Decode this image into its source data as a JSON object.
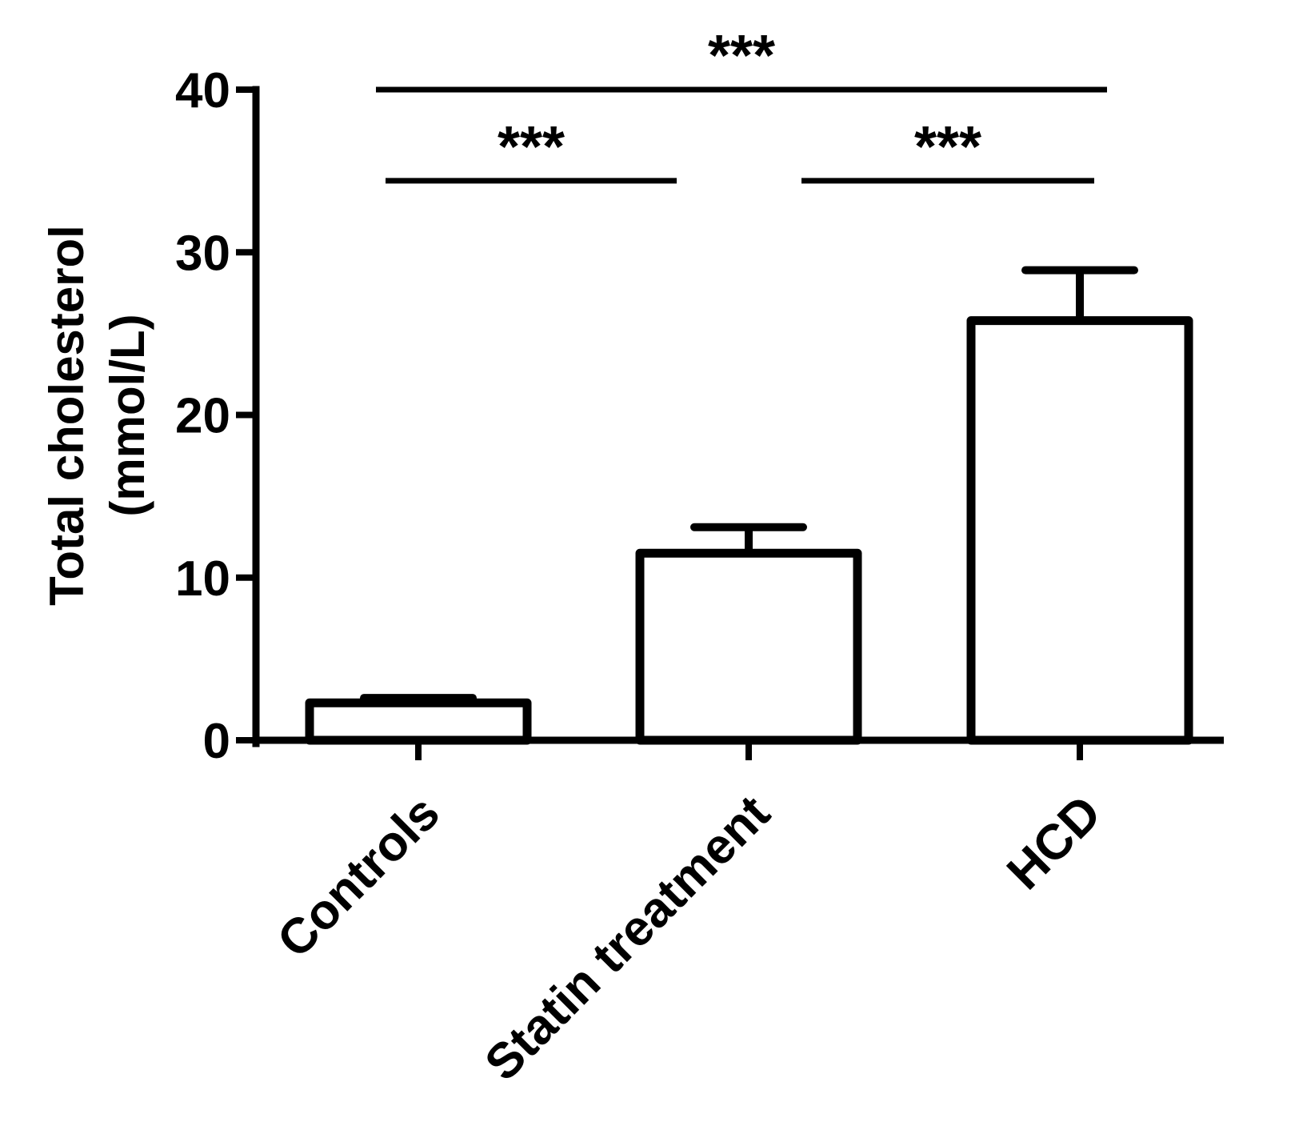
{
  "chart_data": {
    "type": "bar",
    "categories": [
      "Controls",
      "Statin treatment",
      "HCD"
    ],
    "values": [
      2.3,
      11.5,
      25.8
    ],
    "error_upper": [
      0.3,
      1.6,
      3.1
    ],
    "ylim": [
      0,
      40
    ],
    "yticks": [
      "0",
      "10",
      "20",
      "30",
      "40"
    ],
    "ylabel_lines": [
      "Total cholesterol",
      "(mmol/L)"
    ],
    "xlabel": "",
    "title": "",
    "grid": false,
    "legend": false,
    "colors": {
      "bar_fill": "#ffffff",
      "bar_stroke": "#000000"
    },
    "significance": [
      {
        "from": 0,
        "to": 2,
        "label": "***",
        "level": 40
      },
      {
        "from": 0,
        "to": 1,
        "label": "***",
        "level": 34.4
      },
      {
        "from": 1,
        "to": 2,
        "label": "***",
        "level": 34.4
      }
    ]
  }
}
